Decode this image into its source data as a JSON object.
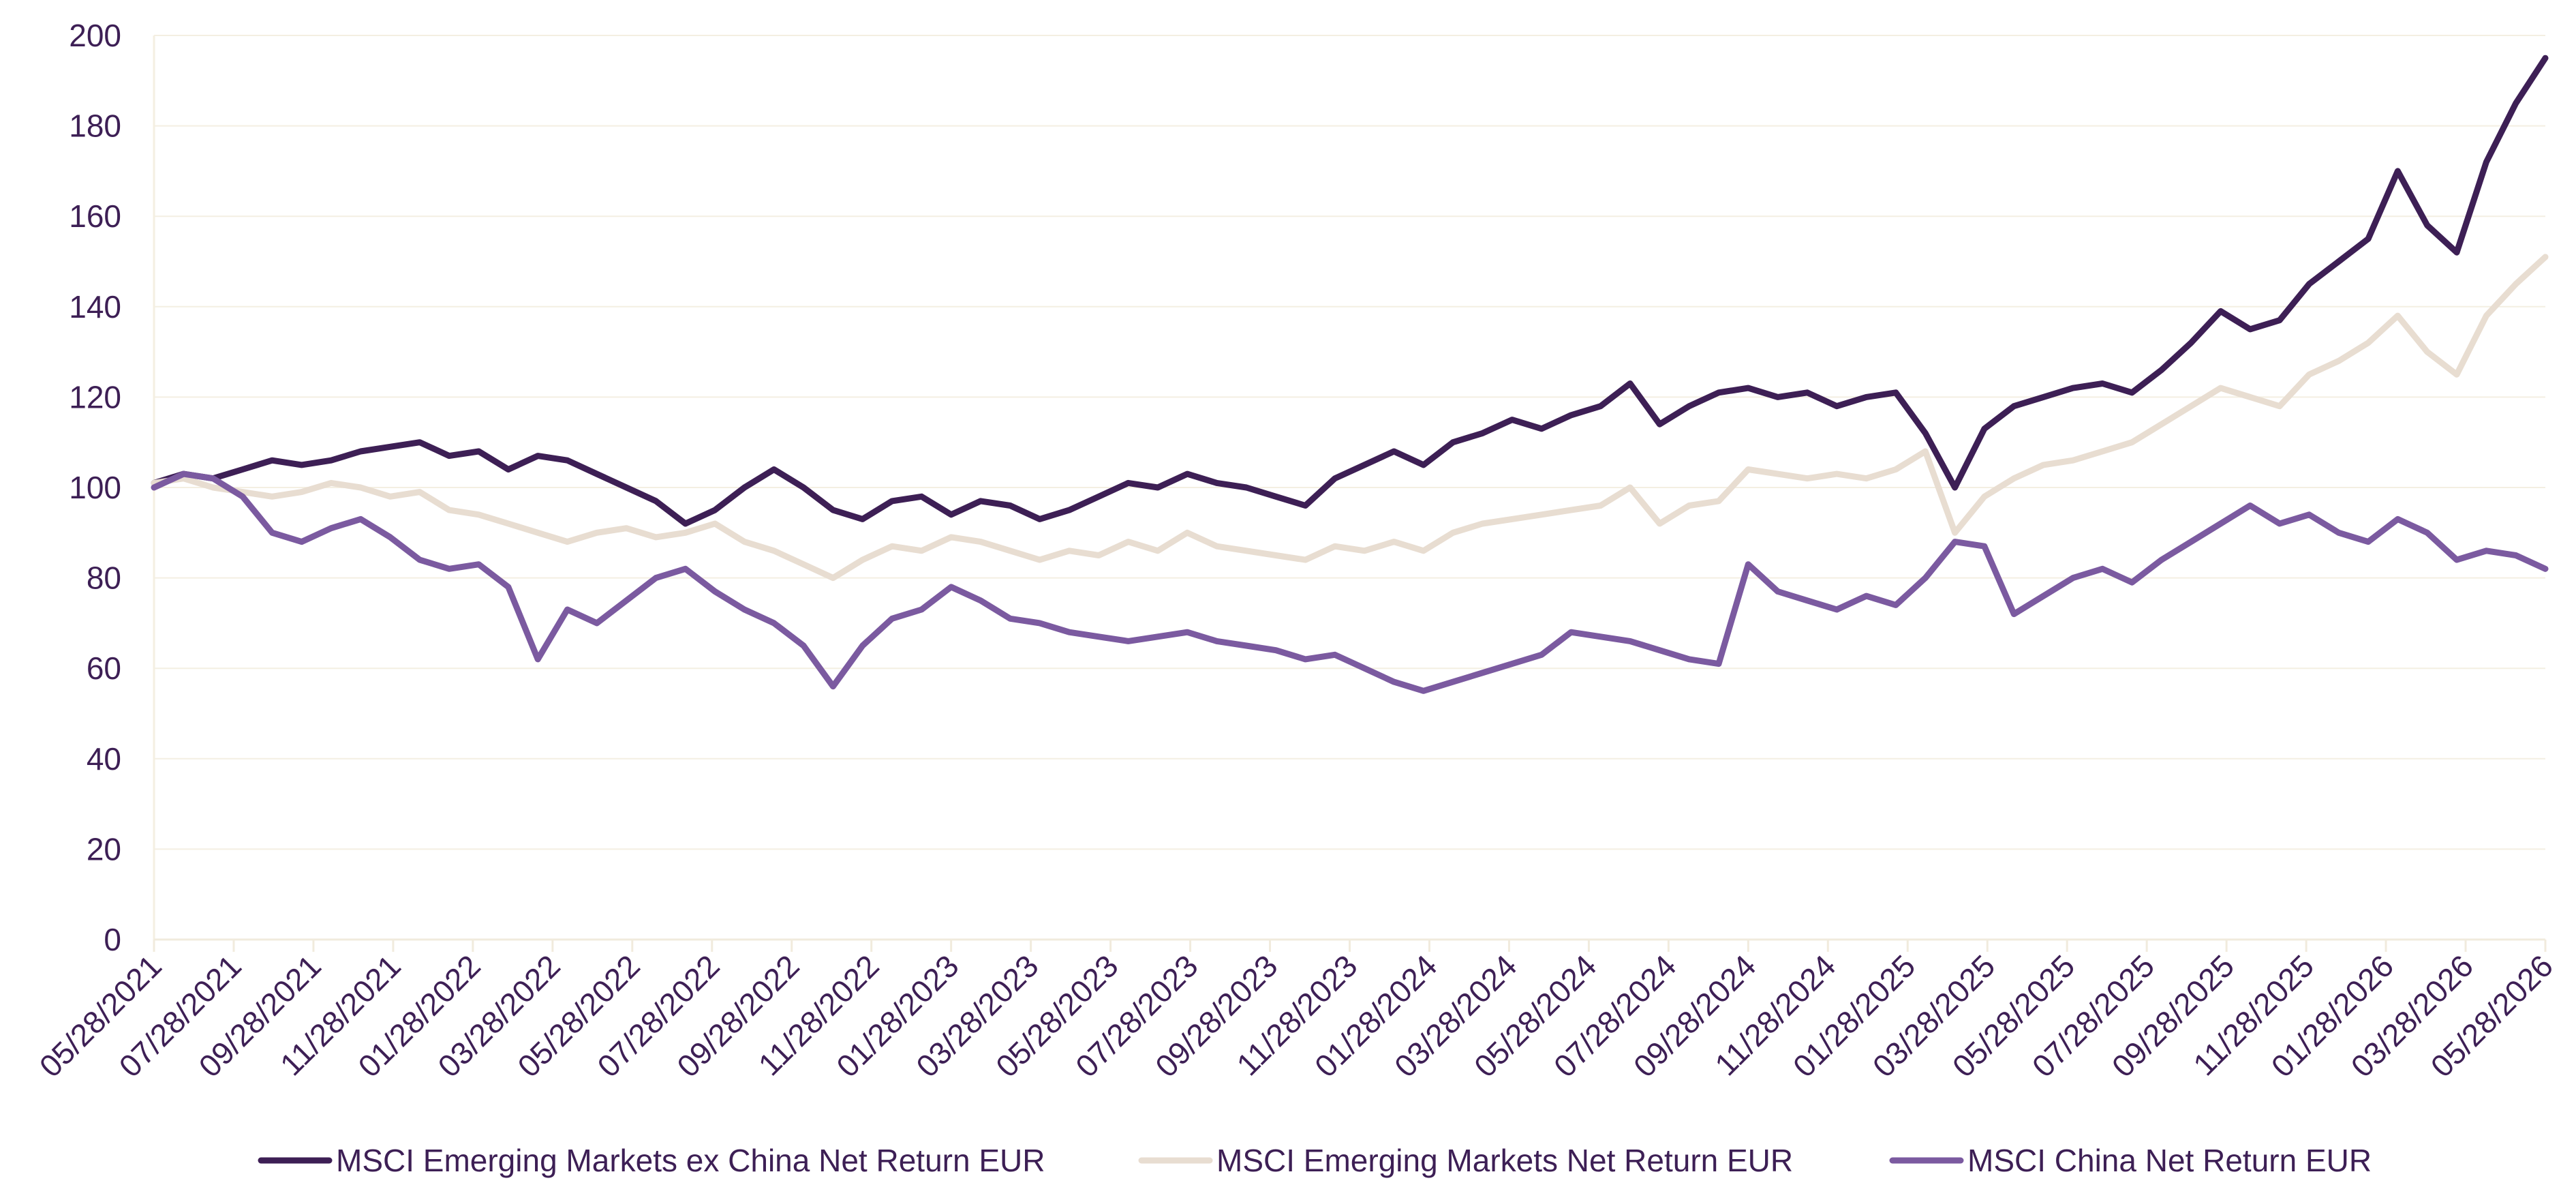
{
  "chart_data": {
    "type": "line",
    "title": "",
    "xlabel": "",
    "ylabel": "",
    "ylim": [
      0,
      200
    ],
    "yticks": [
      "0",
      "20",
      "40",
      "60",
      "80",
      "100",
      "120",
      "140",
      "160",
      "180",
      "200"
    ],
    "xticks": [
      "05/28/2021",
      "07/28/2021",
      "09/28/2021",
      "11/28/2021",
      "01/28/2022",
      "03/28/2022",
      "05/28/2022",
      "07/28/2022",
      "09/28/2022",
      "11/28/2022",
      "01/28/2023",
      "03/28/2023",
      "05/28/2023",
      "07/28/2023",
      "09/28/2023",
      "11/28/2023",
      "01/28/2024",
      "03/28/2024",
      "05/28/2024",
      "07/28/2024",
      "09/28/2024",
      "11/28/2024",
      "01/28/2025",
      "03/28/2025",
      "05/28/2025",
      "07/28/2025",
      "09/28/2025",
      "11/28/2025",
      "01/28/2026",
      "03/28/2026",
      "05/28/2026"
    ],
    "grid": "horizontal",
    "legend_position": "bottom",
    "series": [
      {
        "name": "MSCI Emerging Markets ex China Net Return EUR",
        "color": "#3d1f55",
        "values": [
          101,
          103,
          102,
          104,
          106,
          105,
          106,
          108,
          109,
          110,
          107,
          108,
          104,
          107,
          106,
          103,
          100,
          97,
          92,
          95,
          100,
          104,
          100,
          95,
          93,
          97,
          98,
          94,
          97,
          96,
          93,
          95,
          98,
          101,
          100,
          103,
          101,
          100,
          98,
          96,
          102,
          105,
          108,
          105,
          110,
          112,
          115,
          113,
          116,
          118,
          123,
          114,
          118,
          121,
          122,
          120,
          121,
          118,
          120,
          121,
          112,
          100,
          113,
          118,
          120,
          122,
          123,
          121,
          126,
          132,
          139,
          135,
          137,
          145,
          150,
          155,
          170,
          158,
          152,
          172,
          185,
          195
        ]
      },
      {
        "name": "MSCI Emerging Markets Net Return EUR",
        "color": "#e8ddd1",
        "values": [
          101,
          102,
          100,
          99,
          98,
          99,
          101,
          100,
          98,
          99,
          95,
          94,
          92,
          90,
          88,
          90,
          91,
          89,
          90,
          92,
          88,
          86,
          83,
          80,
          84,
          87,
          86,
          89,
          88,
          86,
          84,
          86,
          85,
          88,
          86,
          90,
          87,
          86,
          85,
          84,
          87,
          86,
          88,
          86,
          90,
          92,
          93,
          94,
          95,
          96,
          100,
          92,
          96,
          97,
          104,
          103,
          102,
          103,
          102,
          104,
          108,
          90,
          98,
          102,
          105,
          106,
          108,
          110,
          114,
          118,
          122,
          120,
          118,
          125,
          128,
          132,
          138,
          130,
          125,
          138,
          145,
          151
        ]
      },
      {
        "name": "MSCI China Net Return EUR",
        "color": "#7b5aa0",
        "values": [
          100,
          103,
          102,
          98,
          90,
          88,
          91,
          93,
          89,
          84,
          82,
          83,
          78,
          62,
          73,
          70,
          75,
          80,
          82,
          77,
          73,
          70,
          65,
          56,
          65,
          71,
          73,
          78,
          75,
          71,
          70,
          68,
          67,
          66,
          67,
          68,
          66,
          65,
          64,
          62,
          63,
          60,
          57,
          55,
          57,
          59,
          61,
          63,
          68,
          67,
          66,
          64,
          62,
          61,
          83,
          77,
          75,
          73,
          76,
          74,
          80,
          88,
          87,
          72,
          76,
          80,
          82,
          79,
          84,
          88,
          92,
          96,
          92,
          94,
          90,
          88,
          93,
          90,
          84,
          86,
          85,
          82
        ]
      }
    ]
  }
}
